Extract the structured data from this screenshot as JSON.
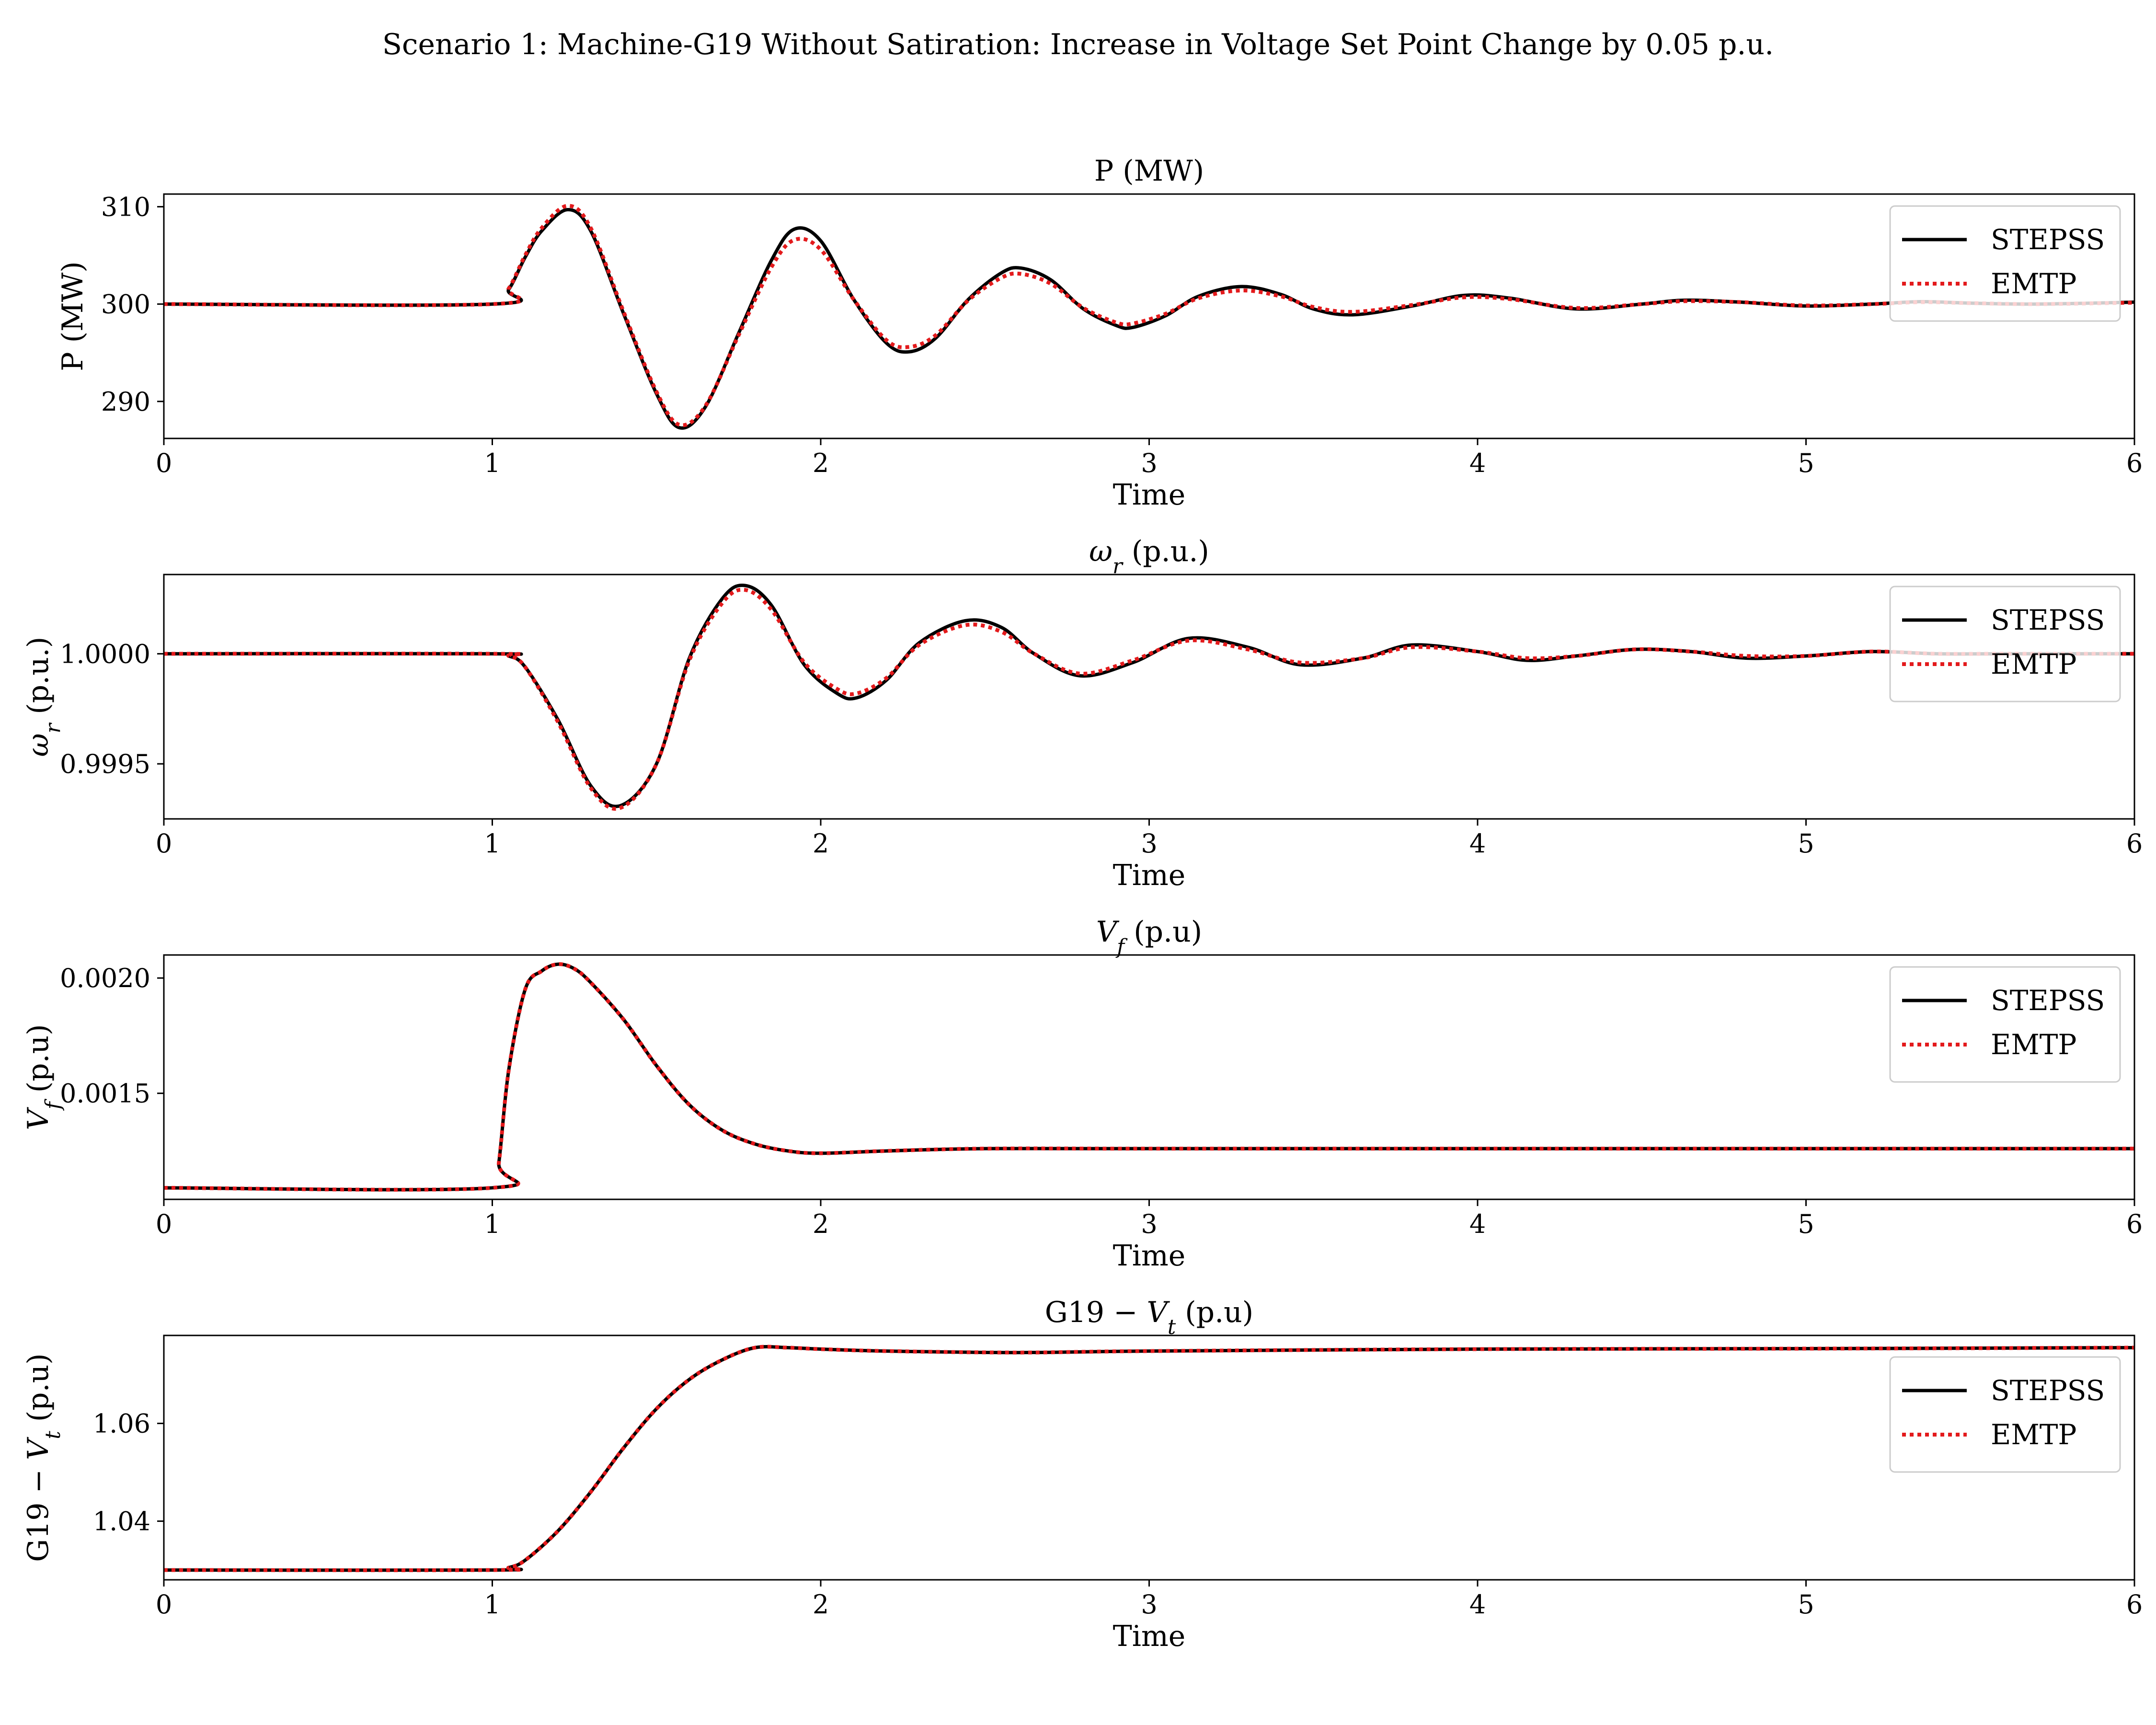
{
  "figure": {
    "title": "Scenario 1: Machine-G19 Without Satiration: Increase in Voltage Set Point Change by 0.05 p.u."
  },
  "colors": {
    "stepss": "#000000",
    "emtp": "#e31a1c"
  },
  "chart_data": [
    {
      "type": "line",
      "title": "P (MW)",
      "xlabel": "Time",
      "ylabel": "P (MW)",
      "xlim": [
        0,
        6
      ],
      "ylim": [
        286.2,
        311.3
      ],
      "xticks": [
        0,
        1,
        2,
        3,
        4,
        5,
        6
      ],
      "xtick_labels": [
        "0",
        "1",
        "2",
        "3",
        "4",
        "5",
        "6"
      ],
      "yticks": [
        290,
        300,
        310
      ],
      "ytick_labels": [
        "290",
        "300",
        "310"
      ],
      "legend": {
        "position": "top-right",
        "entries": [
          "STEPSS",
          "EMTP"
        ]
      },
      "series": [
        {
          "name": "STEPSS",
          "style": "solid",
          "x": [
            0,
            1.0,
            1.05,
            1.1,
            1.15,
            1.23,
            1.3,
            1.4,
            1.5,
            1.57,
            1.65,
            1.75,
            1.85,
            1.92,
            2.0,
            2.1,
            2.2,
            2.27,
            2.35,
            2.45,
            2.55,
            2.61,
            2.7,
            2.8,
            2.9,
            2.95,
            3.05,
            3.15,
            3.28,
            3.4,
            3.5,
            3.62,
            3.8,
            3.96,
            4.1,
            4.3,
            4.5,
            4.63,
            4.8,
            5.0,
            5.2,
            5.35,
            5.5,
            5.7,
            6.0
          ],
          "y": [
            300,
            300,
            301.5,
            304.8,
            307.5,
            309.7,
            307.5,
            299.0,
            290.8,
            287.3,
            289.5,
            297.0,
            304.5,
            307.7,
            306.5,
            300.5,
            296.0,
            295.1,
            296.5,
            300.5,
            303.2,
            303.7,
            302.5,
            299.5,
            297.8,
            297.6,
            298.8,
            300.8,
            301.8,
            301.0,
            299.5,
            298.9,
            299.8,
            300.9,
            300.6,
            299.5,
            300.0,
            300.4,
            300.2,
            299.8,
            300.0,
            300.25,
            300.1,
            300.0,
            300.2
          ]
        },
        {
          "name": "EMTP",
          "style": "dotted",
          "x": [
            0,
            1.0,
            1.05,
            1.1,
            1.15,
            1.23,
            1.3,
            1.4,
            1.5,
            1.57,
            1.65,
            1.75,
            1.85,
            1.92,
            2.0,
            2.1,
            2.2,
            2.27,
            2.35,
            2.45,
            2.55,
            2.61,
            2.7,
            2.8,
            2.9,
            2.95,
            3.05,
            3.15,
            3.28,
            3.4,
            3.5,
            3.62,
            3.8,
            3.96,
            4.1,
            4.3,
            4.5,
            4.63,
            4.8,
            5.0,
            5.2,
            5.35,
            5.5,
            5.7,
            6.0
          ],
          "y": [
            300,
            300,
            301.6,
            305.0,
            307.8,
            310.1,
            307.8,
            299.2,
            291.0,
            287.6,
            289.6,
            296.8,
            303.8,
            306.6,
            305.6,
            300.5,
            296.3,
            295.6,
            296.8,
            300.4,
            302.7,
            303.1,
            302.1,
            299.6,
            298.1,
            298.0,
            299.0,
            300.6,
            301.4,
            300.8,
            299.7,
            299.2,
            299.9,
            300.7,
            300.5,
            299.6,
            300.0,
            300.3,
            300.2,
            299.85,
            300.0,
            300.2,
            300.1,
            300.0,
            300.15
          ]
        }
      ]
    },
    {
      "type": "line",
      "title": "ωr (p.u.)",
      "xlabel": "Time",
      "ylabel": "ωr (p.u.)",
      "xlim": [
        0,
        6
      ],
      "ylim": [
        0.99925,
        1.00036
      ],
      "xticks": [
        0,
        1,
        2,
        3,
        4,
        5,
        6
      ],
      "xtick_labels": [
        "0",
        "1",
        "2",
        "3",
        "4",
        "5",
        "6"
      ],
      "yticks": [
        0.9995,
        1.0
      ],
      "ytick_labels": [
        "0.9995",
        "1.0000"
      ],
      "legend": {
        "position": "top-right",
        "entries": [
          "STEPSS",
          "EMTP"
        ]
      },
      "series": [
        {
          "name": "STEPSS",
          "style": "solid",
          "x": [
            0,
            1.0,
            1.05,
            1.1,
            1.2,
            1.3,
            1.39,
            1.5,
            1.6,
            1.7,
            1.77,
            1.85,
            1.95,
            2.05,
            2.11,
            2.2,
            2.3,
            2.44,
            2.55,
            2.65,
            2.79,
            2.95,
            3.12,
            3.3,
            3.46,
            3.65,
            3.8,
            4.0,
            4.15,
            4.3,
            4.48,
            4.65,
            4.82,
            5.0,
            5.2,
            5.4,
            5.6,
            6.0
          ],
          "y": [
            1.0,
            1.0,
            0.99999,
            0.99994,
            0.9997,
            0.9994,
            0.99931,
            0.9995,
            0.99998,
            1.00025,
            1.00031,
            1.00022,
            0.99995,
            0.99982,
            0.9998,
            0.99988,
            1.00005,
            1.00015,
            1.00012,
            1.0,
            0.9999,
            0.99996,
            1.00007,
            1.00003,
            0.99995,
            0.99998,
            1.00004,
            1.00001,
            0.99997,
            0.99999,
            1.00002,
            1.00001,
            0.99998,
            0.99999,
            1.00001,
            1.0,
            1.0,
            1.0
          ]
        },
        {
          "name": "EMTP",
          "style": "dotted",
          "x": [
            0,
            1.0,
            1.05,
            1.1,
            1.2,
            1.3,
            1.39,
            1.5,
            1.6,
            1.7,
            1.77,
            1.85,
            1.95,
            2.05,
            2.11,
            2.2,
            2.3,
            2.44,
            2.55,
            2.65,
            2.79,
            2.95,
            3.12,
            3.3,
            3.46,
            3.65,
            3.8,
            4.0,
            4.15,
            4.3,
            4.48,
            4.65,
            4.82,
            5.0,
            5.2,
            5.4,
            5.6,
            6.0
          ],
          "y": [
            1.0,
            1.0,
            0.99999,
            0.99994,
            0.99969,
            0.99939,
            0.9993,
            0.9995,
            0.99997,
            1.00023,
            1.00029,
            1.0002,
            0.99996,
            0.99984,
            0.99982,
            0.99989,
            1.00004,
            1.00013,
            1.0001,
            1.0,
            0.99991,
            0.99997,
            1.00006,
            1.00002,
            0.99996,
            0.99998,
            1.00003,
            1.00001,
            0.99998,
            0.99999,
            1.00002,
            1.00001,
            0.99999,
            0.99999,
            1.00001,
            1.0,
            1.0,
            1.0
          ]
        }
      ]
    },
    {
      "type": "line",
      "title": "Vf (p.u)",
      "xlabel": "Time",
      "ylabel": "Vf (p.u)",
      "xlim": [
        0,
        6
      ],
      "ylim": [
        0.00104,
        0.0021
      ],
      "xticks": [
        0,
        1,
        2,
        3,
        4,
        5,
        6
      ],
      "xtick_labels": [
        "0",
        "1",
        "2",
        "3",
        "4",
        "5",
        "6"
      ],
      "yticks": [
        0.0015,
        0.002
      ],
      "ytick_labels": [
        "0.0015",
        "0.0020"
      ],
      "legend": {
        "position": "top-right",
        "entries": [
          "STEPSS",
          "EMTP"
        ]
      },
      "series": [
        {
          "name": "STEPSS",
          "style": "solid",
          "x": [
            0,
            1.0,
            1.02,
            1.05,
            1.1,
            1.15,
            1.2,
            1.25,
            1.3,
            1.4,
            1.5,
            1.6,
            1.7,
            1.8,
            1.9,
            2.0,
            2.2,
            2.5,
            3.0,
            4.0,
            5.0,
            6.0
          ],
          "y": [
            0.00109,
            0.00109,
            0.0012,
            0.0016,
            0.00195,
            0.00203,
            0.00206,
            0.00204,
            0.00198,
            0.00182,
            0.00162,
            0.00145,
            0.00134,
            0.00128,
            0.00125,
            0.00124,
            0.00125,
            0.00126,
            0.00126,
            0.00126,
            0.00126,
            0.00126
          ]
        },
        {
          "name": "EMTP",
          "style": "dotted",
          "x": [
            0,
            1.0,
            1.02,
            1.05,
            1.1,
            1.15,
            1.2,
            1.25,
            1.3,
            1.4,
            1.5,
            1.6,
            1.7,
            1.8,
            1.9,
            2.0,
            2.2,
            2.5,
            3.0,
            4.0,
            5.0,
            6.0
          ],
          "y": [
            0.00109,
            0.00109,
            0.0012,
            0.0016,
            0.00195,
            0.00203,
            0.00206,
            0.00204,
            0.00198,
            0.00182,
            0.00162,
            0.00145,
            0.00134,
            0.00128,
            0.00125,
            0.00124,
            0.00125,
            0.00126,
            0.00126,
            0.00126,
            0.00126,
            0.00126
          ]
        }
      ]
    },
    {
      "type": "line",
      "title": "G19 − Vt (p.u)",
      "xlabel": "Time",
      "ylabel": "G19 − Vt (p.u)",
      "xlim": [
        0,
        6
      ],
      "ylim": [
        1.028,
        1.078
      ],
      "xticks": [
        0,
        1,
        2,
        3,
        4,
        5,
        6
      ],
      "xtick_labels": [
        "0",
        "1",
        "2",
        "3",
        "4",
        "5",
        "6"
      ],
      "yticks": [
        1.04,
        1.06
      ],
      "ytick_labels": [
        "1.04",
        "1.06"
      ],
      "legend": {
        "position": "upper-right",
        "entries": [
          "STEPSS",
          "EMTP"
        ]
      },
      "series": [
        {
          "name": "STEPSS",
          "style": "solid",
          "x": [
            0,
            1.0,
            1.05,
            1.1,
            1.2,
            1.3,
            1.4,
            1.5,
            1.6,
            1.7,
            1.8,
            1.9,
            2.0,
            2.2,
            2.6,
            3.0,
            4.0,
            5.0,
            6.0
          ],
          "y": [
            1.03,
            1.03,
            1.0305,
            1.032,
            1.038,
            1.046,
            1.055,
            1.063,
            1.069,
            1.073,
            1.0755,
            1.0755,
            1.0752,
            1.0748,
            1.0745,
            1.0748,
            1.0752,
            1.0753,
            1.0755
          ]
        },
        {
          "name": "EMTP",
          "style": "dotted",
          "x": [
            0,
            1.0,
            1.05,
            1.1,
            1.2,
            1.3,
            1.4,
            1.5,
            1.6,
            1.7,
            1.8,
            1.9,
            2.0,
            2.2,
            2.6,
            3.0,
            4.0,
            5.0,
            6.0
          ],
          "y": [
            1.03,
            1.03,
            1.0305,
            1.032,
            1.038,
            1.046,
            1.055,
            1.063,
            1.069,
            1.073,
            1.0755,
            1.0755,
            1.0752,
            1.0748,
            1.0745,
            1.0748,
            1.0752,
            1.0753,
            1.0755
          ]
        }
      ]
    }
  ]
}
